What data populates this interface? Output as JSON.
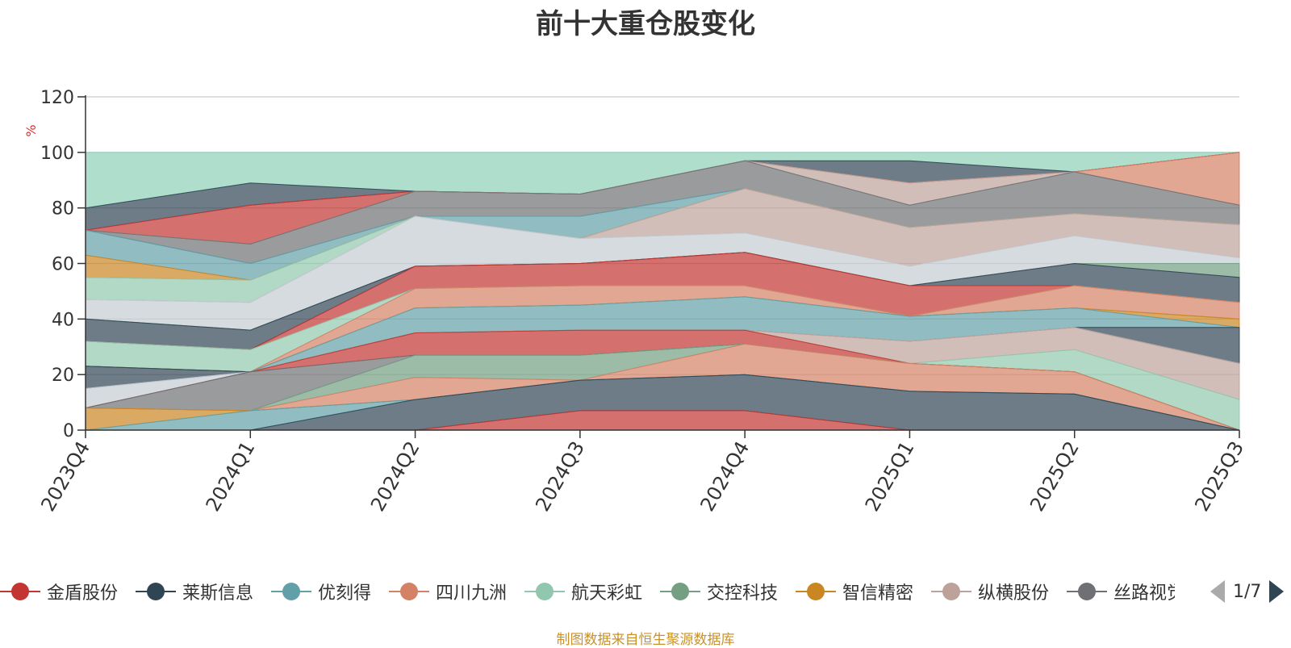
{
  "chart_data": {
    "type": "area",
    "title": "前十大重仓股变化",
    "ylabel": "%",
    "ylim": [
      0,
      120
    ],
    "yticks": [
      0,
      20,
      40,
      60,
      80,
      100,
      120
    ],
    "grid": true,
    "legend_position": "bottom",
    "categories": [
      "2023Q4",
      "2024Q1",
      "2024Q2",
      "2024Q3",
      "2024Q4",
      "2025Q1",
      "2025Q2",
      "2025Q3"
    ],
    "bands": [
      {
        "color": "#8fd0b8",
        "values": [
          [
            80,
            100
          ],
          [
            89,
            100
          ],
          [
            86,
            100
          ],
          [
            85,
            100
          ],
          [
            97,
            100
          ],
          [
            97,
            100
          ],
          [
            93,
            100
          ],
          [
            100,
            100
          ]
        ]
      },
      {
        "color": "#2f4554",
        "values": [
          [
            72,
            80
          ],
          [
            81,
            89
          ],
          [
            86,
            86
          ],
          [
            85,
            85
          ],
          [
            97,
            97
          ],
          [
            89,
            97
          ],
          [
            93,
            93
          ],
          [
            100,
            100
          ]
        ]
      },
      {
        "color": "#c23531",
        "values": [
          [
            72,
            72
          ],
          [
            67,
            81
          ],
          [
            86,
            86
          ],
          [
            85,
            85
          ],
          [
            97,
            97
          ],
          [
            89,
            89
          ],
          [
            93,
            93
          ],
          [
            100,
            100
          ]
        ]
      },
      {
        "color": "#d48265",
        "values": [
          [
            72,
            72
          ],
          [
            67,
            67
          ],
          [
            86,
            86
          ],
          [
            85,
            85
          ],
          [
            97,
            97
          ],
          [
            89,
            89
          ],
          [
            93,
            93
          ],
          [
            81,
            100
          ]
        ]
      },
      {
        "color": "#bda29a",
        "values": [
          [
            72,
            72
          ],
          [
            67,
            67
          ],
          [
            86,
            86
          ],
          [
            85,
            85
          ],
          [
            97,
            97
          ],
          [
            81,
            89
          ],
          [
            93,
            93
          ],
          [
            81,
            81
          ]
        ]
      },
      {
        "color": "#6e7074",
        "values": [
          [
            72,
            72
          ],
          [
            60,
            67
          ],
          [
            77,
            86
          ],
          [
            77,
            85
          ],
          [
            87,
            97
          ],
          [
            73,
            81
          ],
          [
            78,
            93
          ],
          [
            74,
            81
          ]
        ]
      },
      {
        "color": "#61a0a8",
        "values": [
          [
            63,
            72
          ],
          [
            54,
            60
          ],
          [
            77,
            77
          ],
          [
            69,
            77
          ],
          [
            87,
            87
          ],
          [
            73,
            73
          ],
          [
            78,
            78
          ],
          [
            74,
            74
          ]
        ]
      },
      {
        "color": "#ca8622",
        "values": [
          [
            55,
            63
          ],
          [
            54,
            54
          ],
          [
            77,
            77
          ],
          [
            69,
            69
          ],
          [
            87,
            87
          ],
          [
            73,
            73
          ],
          [
            78,
            78
          ],
          [
            74,
            74
          ]
        ]
      },
      {
        "color": "#91c7ae",
        "values": [
          [
            47,
            55
          ],
          [
            46,
            54
          ],
          [
            77,
            77
          ],
          [
            69,
            69
          ],
          [
            87,
            87
          ],
          [
            73,
            73
          ],
          [
            78,
            78
          ],
          [
            74,
            74
          ]
        ]
      },
      {
        "color": "#bda29a",
        "values": [
          [
            47,
            47
          ],
          [
            46,
            46
          ],
          [
            77,
            77
          ],
          [
            69,
            69
          ],
          [
            71,
            87
          ],
          [
            59,
            73
          ],
          [
            70,
            78
          ],
          [
            62,
            74
          ]
        ]
      },
      {
        "color": "#c4ccd3",
        "values": [
          [
            40,
            47
          ],
          [
            36,
            46
          ],
          [
            59,
            77
          ],
          [
            60,
            69
          ],
          [
            64,
            71
          ],
          [
            52,
            59
          ],
          [
            60,
            70
          ],
          [
            60,
            62
          ]
        ]
      },
      {
        "color": "#749f83",
        "values": [
          [
            40,
            40
          ],
          [
            36,
            36
          ],
          [
            59,
            59
          ],
          [
            60,
            60
          ],
          [
            64,
            64
          ],
          [
            52,
            52
          ],
          [
            60,
            60
          ],
          [
            55,
            60
          ]
        ]
      },
      {
        "color": "#2f4554",
        "values": [
          [
            32,
            40
          ],
          [
            29,
            36
          ],
          [
            59,
            59
          ],
          [
            60,
            60
          ],
          [
            64,
            64
          ],
          [
            52,
            52
          ],
          [
            52,
            60
          ],
          [
            46,
            55
          ]
        ]
      },
      {
        "color": "#c23531",
        "values": [
          [
            32,
            32
          ],
          [
            29,
            29
          ],
          [
            51,
            59
          ],
          [
            52,
            60
          ],
          [
            52,
            64
          ],
          [
            41,
            52
          ],
          [
            52,
            52
          ],
          [
            46,
            46
          ]
        ]
      },
      {
        "color": "#91c7ae",
        "values": [
          [
            23,
            32
          ],
          [
            21,
            29
          ],
          [
            51,
            51
          ],
          [
            52,
            52
          ],
          [
            52,
            52
          ],
          [
            41,
            41
          ],
          [
            52,
            52
          ],
          [
            46,
            46
          ]
        ]
      },
      {
        "color": "#d48265",
        "values": [
          [
            23,
            23
          ],
          [
            21,
            21
          ],
          [
            44,
            51
          ],
          [
            45,
            52
          ],
          [
            48,
            52
          ],
          [
            41,
            41
          ],
          [
            44,
            52
          ],
          [
            40,
            46
          ]
        ]
      },
      {
        "color": "#ca8622",
        "values": [
          [
            23,
            23
          ],
          [
            21,
            21
          ],
          [
            44,
            44
          ],
          [
            45,
            45
          ],
          [
            48,
            48
          ],
          [
            41,
            41
          ],
          [
            44,
            44
          ],
          [
            37,
            40
          ]
        ]
      },
      {
        "color": "#61a0a8",
        "values": [
          [
            23,
            23
          ],
          [
            21,
            21
          ],
          [
            35,
            44
          ],
          [
            36,
            45
          ],
          [
            36,
            48
          ],
          [
            32,
            41
          ],
          [
            37,
            44
          ],
          [
            37,
            37
          ]
        ]
      },
      {
        "color": "#2f4554",
        "values": [
          [
            15,
            23
          ],
          [
            21,
            21
          ],
          [
            35,
            35
          ],
          [
            36,
            36
          ],
          [
            36,
            36
          ],
          [
            32,
            32
          ],
          [
            37,
            37
          ],
          [
            24,
            37
          ]
        ]
      },
      {
        "color": "#c4ccd3",
        "values": [
          [
            8,
            15
          ],
          [
            21,
            21
          ],
          [
            35,
            35
          ],
          [
            36,
            36
          ],
          [
            36,
            36
          ],
          [
            32,
            32
          ],
          [
            37,
            37
          ],
          [
            24,
            24
          ]
        ]
      },
      {
        "color": "#bda29a",
        "values": [
          [
            8,
            8
          ],
          [
            21,
            21
          ],
          [
            35,
            35
          ],
          [
            36,
            36
          ],
          [
            36,
            36
          ],
          [
            24,
            32
          ],
          [
            29,
            37
          ],
          [
            11,
            24
          ]
        ]
      },
      {
        "color": "#91c7ae",
        "values": [
          [
            8,
            8
          ],
          [
            21,
            21
          ],
          [
            35,
            35
          ],
          [
            36,
            36
          ],
          [
            36,
            36
          ],
          [
            24,
            24
          ],
          [
            21,
            29
          ],
          [
            0,
            11
          ]
        ]
      },
      {
        "color": "#c23531",
        "values": [
          [
            8,
            8
          ],
          [
            21,
            21
          ],
          [
            27,
            35
          ],
          [
            27,
            36
          ],
          [
            31,
            36
          ],
          [
            24,
            24
          ],
          [
            21,
            21
          ],
          [
            0,
            0
          ]
        ]
      },
      {
        "color": "#6e7074",
        "values": [
          [
            8,
            8
          ],
          [
            7,
            21
          ],
          [
            27,
            27
          ],
          [
            27,
            27
          ],
          [
            31,
            31
          ],
          [
            24,
            24
          ],
          [
            21,
            21
          ],
          [
            0,
            0
          ]
        ]
      },
      {
        "color": "#749f83",
        "values": [
          [
            8,
            8
          ],
          [
            7,
            7
          ],
          [
            19,
            27
          ],
          [
            18,
            27
          ],
          [
            31,
            31
          ],
          [
            24,
            24
          ],
          [
            21,
            21
          ],
          [
            0,
            0
          ]
        ]
      },
      {
        "color": "#d48265",
        "values": [
          [
            8,
            8
          ],
          [
            7,
            7
          ],
          [
            11,
            19
          ],
          [
            18,
            18
          ],
          [
            20,
            31
          ],
          [
            14,
            24
          ],
          [
            13,
            21
          ],
          [
            0,
            0
          ]
        ]
      },
      {
        "color": "#ca8622",
        "values": [
          [
            0,
            8
          ],
          [
            7,
            7
          ],
          [
            11,
            11
          ],
          [
            18,
            18
          ],
          [
            20,
            20
          ],
          [
            14,
            14
          ],
          [
            13,
            13
          ],
          [
            0,
            0
          ]
        ]
      },
      {
        "color": "#61a0a8",
        "values": [
          [
            0,
            0
          ],
          [
            0,
            7
          ],
          [
            11,
            11
          ],
          [
            18,
            18
          ],
          [
            20,
            20
          ],
          [
            14,
            14
          ],
          [
            13,
            13
          ],
          [
            0,
            0
          ]
        ]
      },
      {
        "color": "#2f4554",
        "values": [
          [
            0,
            0
          ],
          [
            0,
            0
          ],
          [
            0,
            11
          ],
          [
            7,
            18
          ],
          [
            7,
            20
          ],
          [
            0,
            14
          ],
          [
            0,
            13
          ],
          [
            0,
            0
          ]
        ]
      },
      {
        "color": "#c23531",
        "values": [
          [
            0,
            0
          ],
          [
            0,
            0
          ],
          [
            0,
            0
          ],
          [
            0,
            7
          ],
          [
            0,
            7
          ],
          [
            0,
            0
          ],
          [
            0,
            0
          ],
          [
            0,
            0
          ]
        ]
      }
    ]
  },
  "legend": {
    "items": [
      {
        "label": "金盾股份",
        "color": "#c23531"
      },
      {
        "label": "莱斯信息",
        "color": "#2f4554"
      },
      {
        "label": "优刻得",
        "color": "#61a0a8"
      },
      {
        "label": "四川九洲",
        "color": "#d48265"
      },
      {
        "label": "航天彩虹",
        "color": "#91c7ae"
      },
      {
        "label": "交控科技",
        "color": "#749f83"
      },
      {
        "label": "智信精密",
        "color": "#ca8622"
      },
      {
        "label": "纵横股份",
        "color": "#bda29a"
      },
      {
        "label": "丝路视觉",
        "color": "#6e7074"
      }
    ],
    "page": "1/7"
  },
  "source": "制图数据来自恒生聚源数据库"
}
